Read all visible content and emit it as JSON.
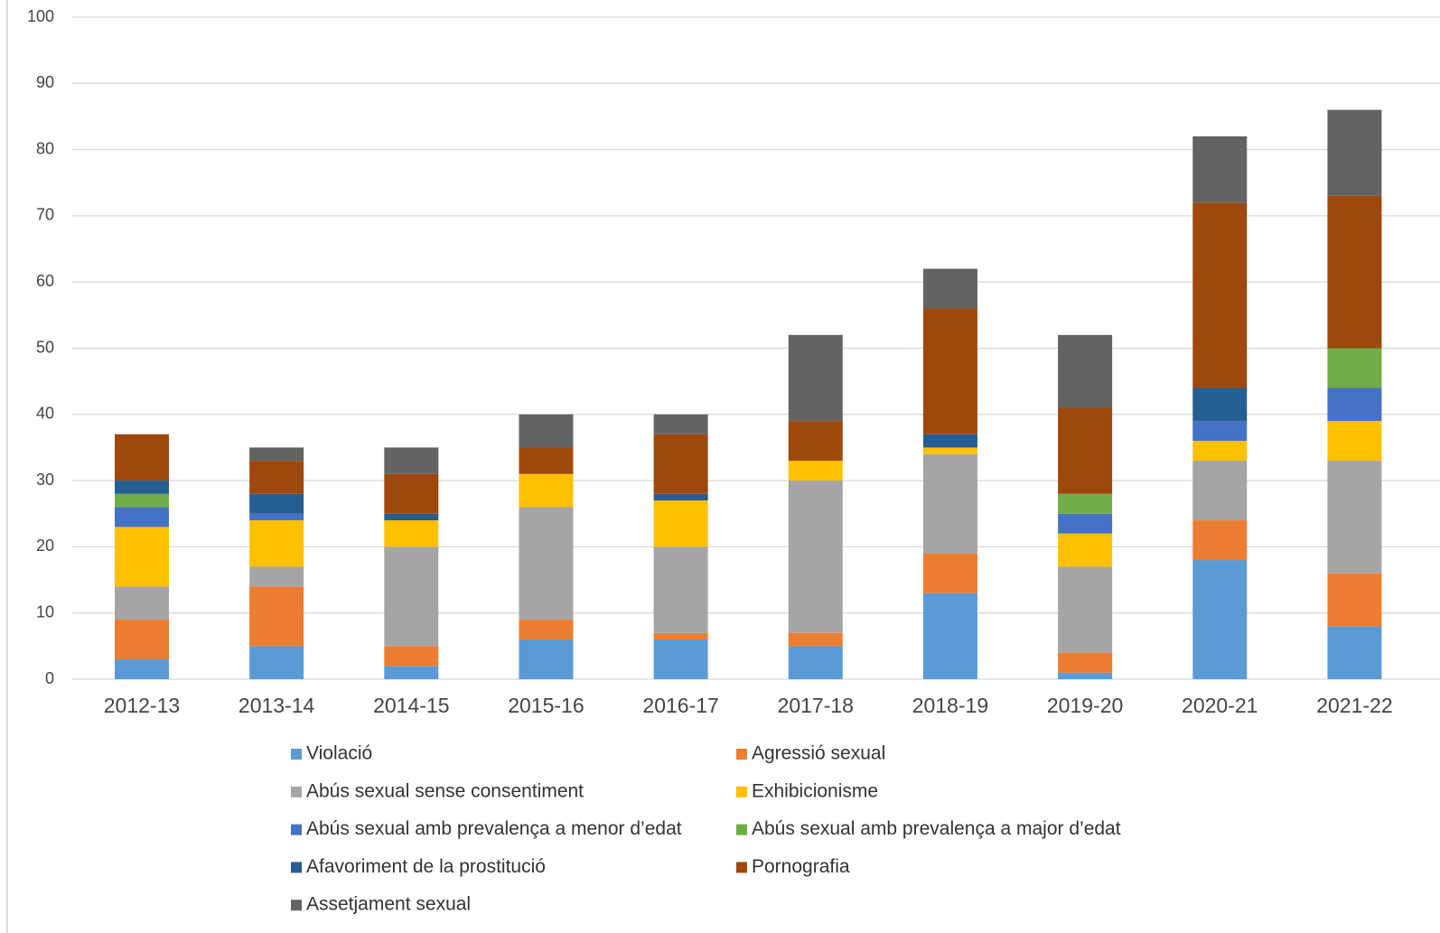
{
  "chart_data": {
    "type": "stacked_bar",
    "categories": [
      "2012-13",
      "2013-14",
      "2014-15",
      "2015-16",
      "2016-17",
      "2017-18",
      "2018-19",
      "2019-20",
      "2020-21",
      "2021-22"
    ],
    "series": [
      {
        "name": "Violació",
        "color": "#5b9bd5",
        "values": [
          3,
          5,
          2,
          6,
          6,
          5,
          13,
          1,
          18,
          8
        ]
      },
      {
        "name": "Agressió sexual",
        "color": "#ed7d31",
        "values": [
          6,
          9,
          3,
          3,
          1,
          2,
          6,
          3,
          6,
          8
        ]
      },
      {
        "name": "Abús sexual sense consentiment",
        "color": "#a5a5a5",
        "values": [
          5,
          3,
          15,
          17,
          13,
          23,
          15,
          13,
          9,
          17
        ]
      },
      {
        "name": "Exhibicionisme",
        "color": "#ffc000",
        "values": [
          9,
          7,
          4,
          5,
          7,
          3,
          1,
          5,
          3,
          6
        ]
      },
      {
        "name": "Abús sexual amb prevalença a menor d’edat",
        "color": "#4472c4",
        "values": [
          3,
          1,
          0,
          0,
          0,
          0,
          0,
          3,
          3,
          5
        ]
      },
      {
        "name": "Abús sexual amb prevalença a major d’edat",
        "color": "#70ad47",
        "values": [
          2,
          0,
          0,
          0,
          0,
          0,
          0,
          3,
          0,
          6
        ]
      },
      {
        "name": "Afavoriment de la prostitució",
        "color": "#255e91",
        "values": [
          2,
          3,
          1,
          0,
          1,
          0,
          2,
          0,
          5,
          0
        ]
      },
      {
        "name": "Pornografia",
        "color": "#9e480e",
        "values": [
          7,
          5,
          6,
          4,
          9,
          6,
          19,
          13,
          28,
          23
        ]
      },
      {
        "name": "Assetjament sexual",
        "color": "#636363",
        "values": [
          0,
          2,
          4,
          5,
          3,
          13,
          6,
          11,
          10,
          13
        ]
      }
    ],
    "ylim": [
      0,
      100
    ],
    "yticks": [
      0,
      10,
      20,
      30,
      40,
      50,
      60,
      70,
      80,
      90,
      100
    ],
    "grid": true,
    "legend": "bottom"
  }
}
